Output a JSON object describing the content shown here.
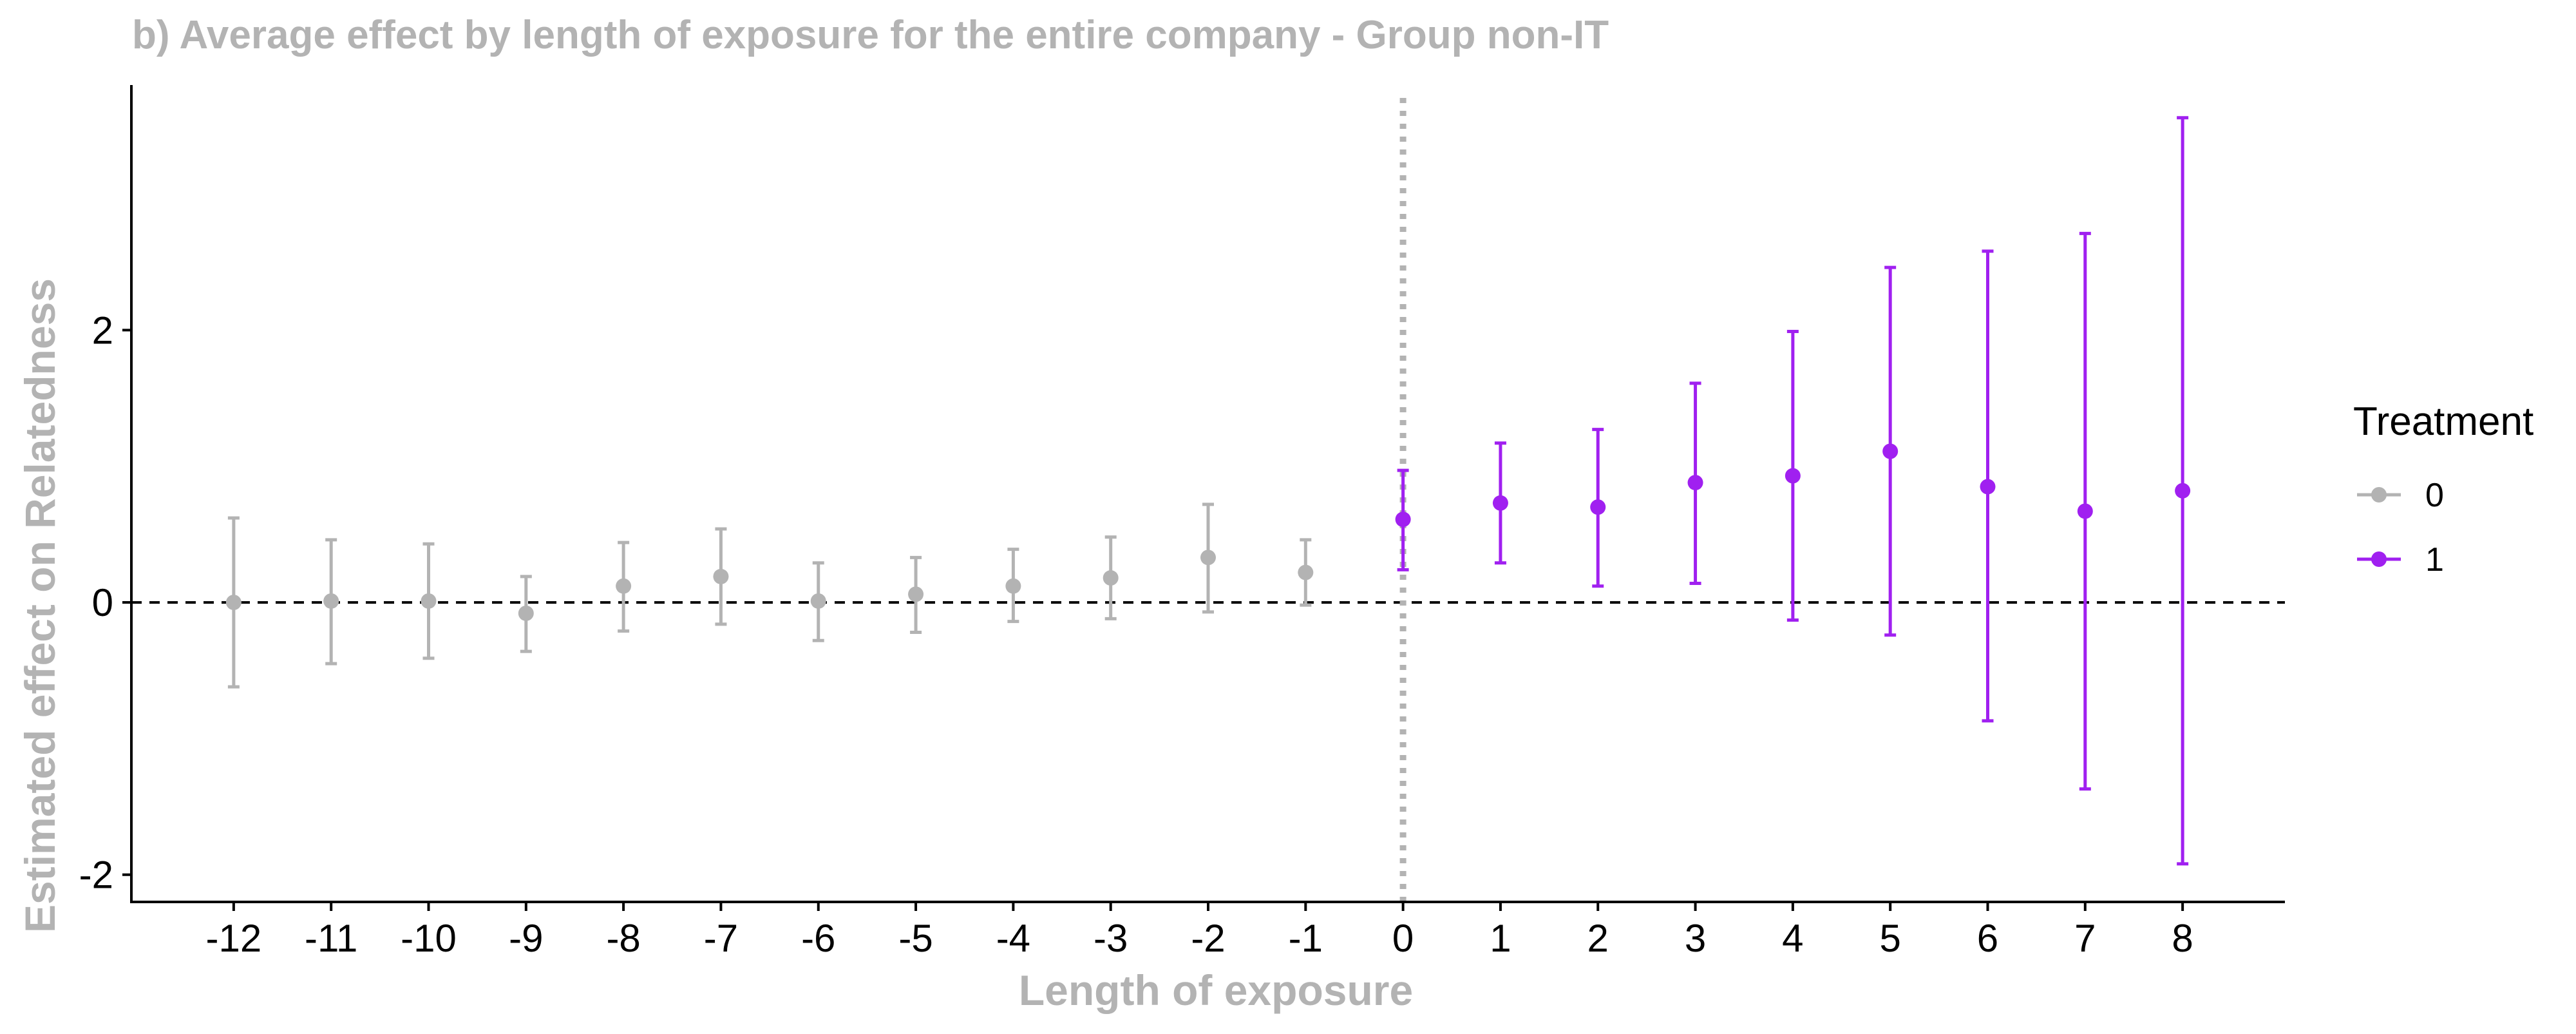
{
  "chart_data": {
    "type": "errorbar",
    "title": "b) Average effect by length of exposure for the entire company - Group non-IT",
    "xlabel": "Length of exposure",
    "ylabel": "Estimated effect on Relatedness",
    "x_ticks": [
      -12,
      -11,
      -10,
      -9,
      -8,
      -7,
      -6,
      -5,
      -4,
      -3,
      -2,
      -1,
      0,
      1,
      2,
      3,
      4,
      5,
      6,
      7,
      8
    ],
    "y_ticks": [
      -2,
      0,
      2
    ],
    "xlim": [
      -13.05,
      9.05
    ],
    "ylim": [
      -2.2,
      3.8
    ],
    "reference_lines": {
      "horizontal_at": 0,
      "horizontal_style": "dashed",
      "vertical_at": 0,
      "vertical_style": "dotted"
    },
    "legend": {
      "title": "Treatment",
      "position": "right",
      "entries": [
        {
          "label": "0",
          "color": "#b3b3b3"
        },
        {
          "label": "1",
          "color": "#a020f0"
        }
      ]
    },
    "series": [
      {
        "name": "0",
        "color": "#b3b3b3",
        "points": [
          {
            "x": -12,
            "y": 0.0,
            "lo": -0.62,
            "hi": 0.62
          },
          {
            "x": -11,
            "y": 0.01,
            "lo": -0.45,
            "hi": 0.46
          },
          {
            "x": -10,
            "y": 0.01,
            "lo": -0.41,
            "hi": 0.43
          },
          {
            "x": -9,
            "y": -0.08,
            "lo": -0.36,
            "hi": 0.19
          },
          {
            "x": -8,
            "y": 0.12,
            "lo": -0.21,
            "hi": 0.44
          },
          {
            "x": -7,
            "y": 0.19,
            "lo": -0.16,
            "hi": 0.54
          },
          {
            "x": -6,
            "y": 0.01,
            "lo": -0.28,
            "hi": 0.29
          },
          {
            "x": -5,
            "y": 0.06,
            "lo": -0.22,
            "hi": 0.33
          },
          {
            "x": -4,
            "y": 0.12,
            "lo": -0.14,
            "hi": 0.39
          },
          {
            "x": -3,
            "y": 0.18,
            "lo": -0.12,
            "hi": 0.48
          },
          {
            "x": -2,
            "y": 0.33,
            "lo": -0.07,
            "hi": 0.72
          },
          {
            "x": -1,
            "y": 0.22,
            "lo": -0.02,
            "hi": 0.46
          }
        ]
      },
      {
        "name": "1",
        "color": "#a020f0",
        "points": [
          {
            "x": 0,
            "y": 0.61,
            "lo": 0.24,
            "hi": 0.97
          },
          {
            "x": 1,
            "y": 0.73,
            "lo": 0.29,
            "hi": 1.17
          },
          {
            "x": 2,
            "y": 0.7,
            "lo": 0.12,
            "hi": 1.27
          },
          {
            "x": 3,
            "y": 0.88,
            "lo": 0.14,
            "hi": 1.61
          },
          {
            "x": 4,
            "y": 0.93,
            "lo": -0.13,
            "hi": 1.99
          },
          {
            "x": 5,
            "y": 1.11,
            "lo": -0.24,
            "hi": 2.46
          },
          {
            "x": 6,
            "y": 0.85,
            "lo": -0.87,
            "hi": 2.58
          },
          {
            "x": 7,
            "y": 0.67,
            "lo": -1.37,
            "hi": 2.71
          },
          {
            "x": 8,
            "y": 0.82,
            "lo": -1.92,
            "hi": 3.56
          }
        ]
      }
    ]
  }
}
